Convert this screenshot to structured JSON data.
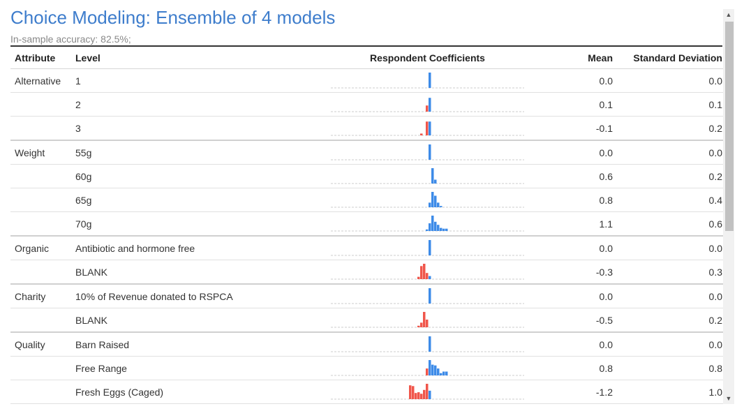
{
  "title": "Choice Modeling: Ensemble of 4 models",
  "subtitle": "In-sample accuracy: 82.5%;",
  "headers": {
    "attribute": "Attribute",
    "level": "Level",
    "chart": "Respondent Coefficients",
    "mean": "Mean",
    "sd": "Standard Deviation"
  },
  "colors": {
    "positive": "#3d8be8",
    "negative": "#f0564b",
    "title": "#3e7dcc",
    "dash": "#cccccc"
  },
  "rows": [
    {
      "attribute": "Alternative",
      "level": "1",
      "mean": "0.0",
      "sd": "0.0",
      "group_start": true,
      "bins": [
        {
          "offset": 0,
          "height": 1.0,
          "sign": "pos"
        }
      ]
    },
    {
      "attribute": "",
      "level": "2",
      "mean": "0.1",
      "sd": "0.1",
      "group_start": false,
      "bins": [
        {
          "offset": -1,
          "height": 0.4,
          "sign": "neg"
        },
        {
          "offset": 0,
          "height": 0.9,
          "sign": "pos"
        }
      ]
    },
    {
      "attribute": "",
      "level": "3",
      "mean": "-0.1",
      "sd": "0.2",
      "group_start": false,
      "bins": [
        {
          "offset": -3,
          "height": 0.12,
          "sign": "neg"
        },
        {
          "offset": -1,
          "height": 0.9,
          "sign": "neg"
        },
        {
          "offset": 0,
          "height": 0.9,
          "sign": "pos"
        }
      ]
    },
    {
      "attribute": "Weight",
      "level": "55g",
      "mean": "0.0",
      "sd": "0.0",
      "group_start": true,
      "bins": [
        {
          "offset": 0,
          "height": 1.0,
          "sign": "pos"
        }
      ]
    },
    {
      "attribute": "",
      "level": "60g",
      "mean": "0.6",
      "sd": "0.2",
      "group_start": false,
      "bins": [
        {
          "offset": 1,
          "height": 1.0,
          "sign": "pos"
        },
        {
          "offset": 2,
          "height": 0.25,
          "sign": "pos"
        }
      ]
    },
    {
      "attribute": "",
      "level": "65g",
      "mean": "0.8",
      "sd": "0.4",
      "group_start": false,
      "bins": [
        {
          "offset": 0,
          "height": 0.3,
          "sign": "pos"
        },
        {
          "offset": 1,
          "height": 1.0,
          "sign": "pos"
        },
        {
          "offset": 2,
          "height": 0.75,
          "sign": "pos"
        },
        {
          "offset": 3,
          "height": 0.3,
          "sign": "pos"
        },
        {
          "offset": 4,
          "height": 0.08,
          "sign": "pos"
        }
      ]
    },
    {
      "attribute": "",
      "level": "70g",
      "mean": "1.1",
      "sd": "0.6",
      "group_start": false,
      "bins": [
        {
          "offset": -1,
          "height": 0.1,
          "sign": "pos"
        },
        {
          "offset": 0,
          "height": 0.5,
          "sign": "pos"
        },
        {
          "offset": 1,
          "height": 1.0,
          "sign": "pos"
        },
        {
          "offset": 2,
          "height": 0.6,
          "sign": "pos"
        },
        {
          "offset": 3,
          "height": 0.4,
          "sign": "pos"
        },
        {
          "offset": 4,
          "height": 0.2,
          "sign": "pos"
        },
        {
          "offset": 5,
          "height": 0.15,
          "sign": "pos"
        },
        {
          "offset": 6,
          "height": 0.15,
          "sign": "pos"
        }
      ]
    },
    {
      "attribute": "Organic",
      "level": "Antibiotic and hormone free",
      "mean": "0.0",
      "sd": "0.0",
      "group_start": true,
      "bins": [
        {
          "offset": 0,
          "height": 1.0,
          "sign": "pos"
        }
      ]
    },
    {
      "attribute": "",
      "level": "BLANK",
      "mean": "-0.3",
      "sd": "0.3",
      "group_start": false,
      "bins": [
        {
          "offset": -4,
          "height": 0.15,
          "sign": "neg"
        },
        {
          "offset": -3,
          "height": 0.85,
          "sign": "neg"
        },
        {
          "offset": -2,
          "height": 1.0,
          "sign": "neg"
        },
        {
          "offset": -1,
          "height": 0.4,
          "sign": "neg"
        },
        {
          "offset": 0,
          "height": 0.2,
          "sign": "pos"
        }
      ]
    },
    {
      "attribute": "Charity",
      "level": "10% of Revenue donated to RSPCA",
      "mean": "0.0",
      "sd": "0.0",
      "group_start": true,
      "bins": [
        {
          "offset": 0,
          "height": 1.0,
          "sign": "pos"
        }
      ]
    },
    {
      "attribute": "",
      "level": "BLANK",
      "mean": "-0.5",
      "sd": "0.2",
      "group_start": false,
      "bins": [
        {
          "offset": -4,
          "height": 0.1,
          "sign": "neg"
        },
        {
          "offset": -3,
          "height": 0.3,
          "sign": "neg"
        },
        {
          "offset": -2,
          "height": 1.0,
          "sign": "neg"
        },
        {
          "offset": -1,
          "height": 0.5,
          "sign": "neg"
        }
      ]
    },
    {
      "attribute": "Quality",
      "level": "Barn Raised",
      "mean": "0.0",
      "sd": "0.0",
      "group_start": true,
      "bins": [
        {
          "offset": 0,
          "height": 1.0,
          "sign": "pos"
        }
      ]
    },
    {
      "attribute": "",
      "level": "Free Range",
      "mean": "0.8",
      "sd": "0.8",
      "group_start": false,
      "bins": [
        {
          "offset": -1,
          "height": 0.45,
          "sign": "neg"
        },
        {
          "offset": 0,
          "height": 1.0,
          "sign": "pos"
        },
        {
          "offset": 1,
          "height": 0.7,
          "sign": "pos"
        },
        {
          "offset": 2,
          "height": 0.65,
          "sign": "pos"
        },
        {
          "offset": 3,
          "height": 0.45,
          "sign": "pos"
        },
        {
          "offset": 4,
          "height": 0.15,
          "sign": "pos"
        },
        {
          "offset": 5,
          "height": 0.25,
          "sign": "pos"
        },
        {
          "offset": 6,
          "height": 0.25,
          "sign": "pos"
        }
      ]
    },
    {
      "attribute": "",
      "level": "Fresh Eggs (Caged)",
      "mean": "-1.2",
      "sd": "1.0",
      "group_start": false,
      "bins": [
        {
          "offset": -7,
          "height": 0.9,
          "sign": "neg"
        },
        {
          "offset": -6,
          "height": 0.85,
          "sign": "neg"
        },
        {
          "offset": -5,
          "height": 0.4,
          "sign": "neg"
        },
        {
          "offset": -4,
          "height": 0.45,
          "sign": "neg"
        },
        {
          "offset": -3,
          "height": 0.35,
          "sign": "neg"
        },
        {
          "offset": -2,
          "height": 0.6,
          "sign": "neg"
        },
        {
          "offset": -1,
          "height": 1.0,
          "sign": "neg"
        },
        {
          "offset": 0,
          "height": 0.55,
          "sign": "pos"
        }
      ]
    }
  ]
}
